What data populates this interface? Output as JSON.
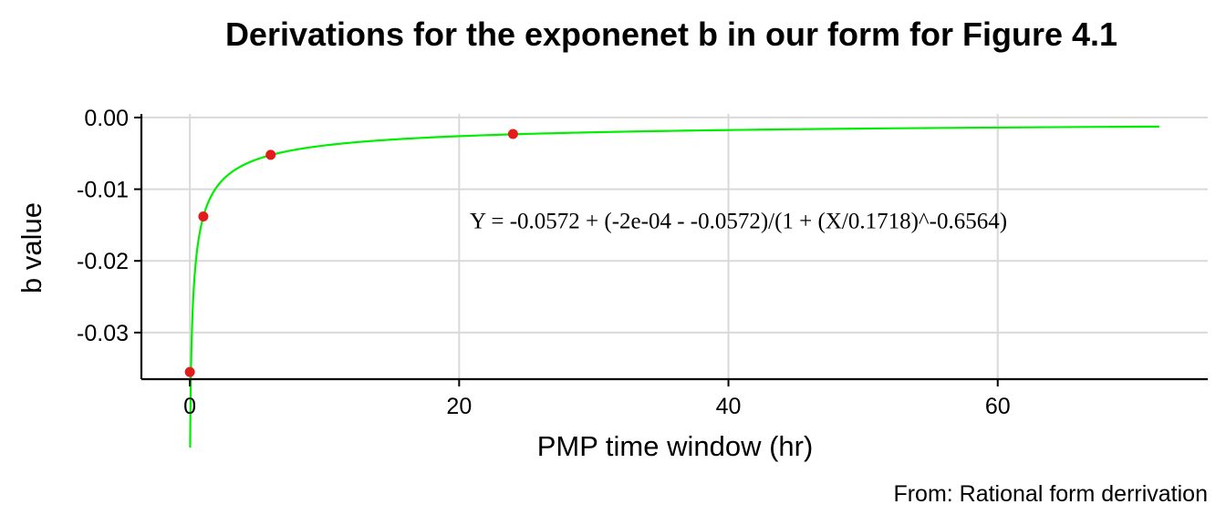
{
  "chart_data": {
    "type": "scatter",
    "title": "Derivations for the exponenet b in our form for Figure 4.1",
    "caption": "From: Rational form derrivation",
    "xlabel": "PMP time window (hr)",
    "ylabel": "b value",
    "xlim": [
      -3.6,
      75.6
    ],
    "ylim": [
      -0.0365,
      0.0005
    ],
    "x_ticks": [
      0,
      20,
      40,
      60
    ],
    "x_tick_labels": [
      "0",
      "20",
      "40",
      "60"
    ],
    "y_ticks": [
      0,
      -0.01,
      -0.02,
      -0.03
    ],
    "y_tick_labels": [
      "0.00",
      "-0.01",
      "-0.02",
      "-0.03"
    ],
    "grid": true,
    "points": {
      "x": [
        0,
        1,
        6,
        24
      ],
      "y": [
        -0.0355,
        -0.0138,
        -0.0052,
        -0.0023
      ],
      "color": "#e41a1c"
    },
    "fit": {
      "type": "line",
      "color": "#00ee00",
      "x_range": [
        0.02,
        72
      ],
      "a": -0.0572,
      "d": -0.0002,
      "c": 0.1718,
      "b": -0.6564
    },
    "annotation": {
      "text": "Y = -0.0572 + (-2e-04 - -0.0572)/(1 + (X/0.1718)^-0.6564)",
      "x": 15,
      "y": -0.0143
    }
  }
}
